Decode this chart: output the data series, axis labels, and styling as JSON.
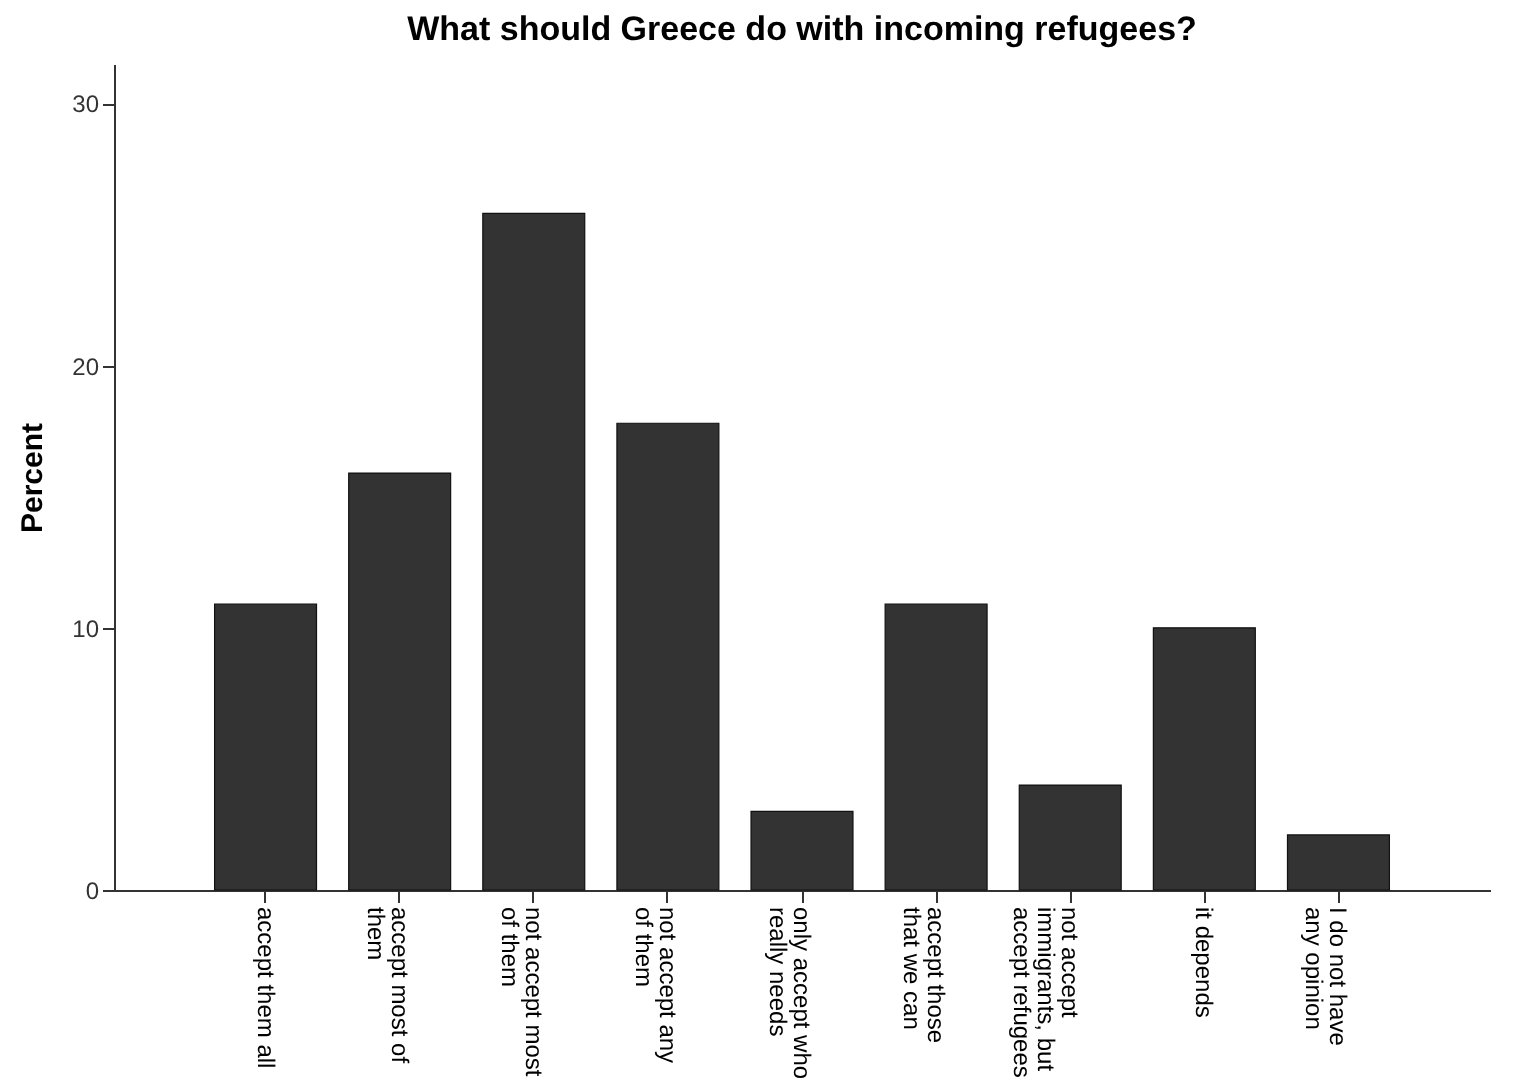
{
  "chart_data": {
    "type": "bar",
    "title": "What should Greece do with incoming refugees?",
    "ylabel": "Percent",
    "categories": [
      "accept them all",
      "accept most of them",
      "not accept most of them",
      "not accept any of them",
      "only accept who really needs",
      "accept those that we can",
      "not accept immigrants, but accept refugees",
      "it depends",
      "I do not have any opinion"
    ],
    "values": [
      10.9,
      15.9,
      25.8,
      17.8,
      3.0,
      10.9,
      4.0,
      10.0,
      2.1
    ],
    "color": "#333333",
    "ylim": [
      0,
      31.5
    ],
    "yticks": [
      0,
      10,
      20,
      30
    ],
    "grid": false
  }
}
